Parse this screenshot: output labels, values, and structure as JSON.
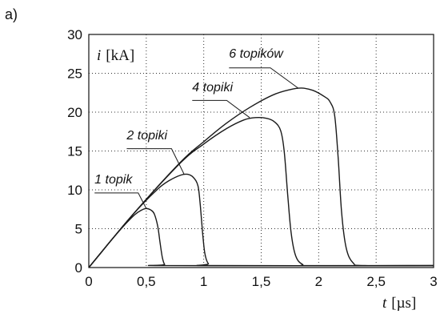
{
  "panel_label": "a)",
  "chart_data": {
    "type": "line",
    "xlabel_var": "t",
    "xlabel_unit": "[µs]",
    "ylabel_var": "i",
    "ylabel_unit": "[kA]",
    "xlim": [
      0,
      3
    ],
    "ylim": [
      0,
      30
    ],
    "xticks": [
      0,
      0.5,
      1,
      1.5,
      2,
      2.5,
      3
    ],
    "xtick_labels": [
      "0",
      "0,5",
      "1",
      "1,5",
      "2",
      "2,5",
      "3"
    ],
    "yticks": [
      0,
      5,
      10,
      15,
      20,
      25,
      30
    ],
    "ytick_labels": [
      "0",
      "5",
      "10",
      "15",
      "20",
      "25",
      "30"
    ],
    "grid": true,
    "series": [
      {
        "name": "1 topik",
        "points": [
          [
            0,
            0
          ],
          [
            0.1,
            1.8
          ],
          [
            0.2,
            3.6
          ],
          [
            0.3,
            5.3
          ],
          [
            0.4,
            6.8
          ],
          [
            0.46,
            7.4
          ],
          [
            0.5,
            7.6
          ],
          [
            0.54,
            7.4
          ],
          [
            0.57,
            6.9
          ],
          [
            0.6,
            5.3
          ],
          [
            0.62,
            3.2
          ],
          [
            0.64,
            1.3
          ],
          [
            0.66,
            0.4
          ],
          [
            0.7,
            0.25
          ],
          [
            3,
            0.25
          ]
        ]
      },
      {
        "name": "2 topiki",
        "points": [
          [
            0,
            0
          ],
          [
            0.2,
            3.6
          ],
          [
            0.4,
            7.1
          ],
          [
            0.6,
            10.1
          ],
          [
            0.7,
            11.2
          ],
          [
            0.8,
            11.9
          ],
          [
            0.86,
            12.0
          ],
          [
            0.91,
            11.6
          ],
          [
            0.95,
            10.5
          ],
          [
            0.97,
            8.0
          ],
          [
            0.99,
            4.5
          ],
          [
            1.01,
            1.8
          ],
          [
            1.04,
            0.5
          ],
          [
            1.1,
            0.25
          ],
          [
            3,
            0.25
          ]
        ]
      },
      {
        "name": "4 topiki",
        "points": [
          [
            0,
            0
          ],
          [
            0.4,
            7.1
          ],
          [
            0.8,
            13.5
          ],
          [
            1.0,
            15.9
          ],
          [
            1.2,
            17.9
          ],
          [
            1.35,
            19.0
          ],
          [
            1.45,
            19.3
          ],
          [
            1.55,
            19.2
          ],
          [
            1.62,
            18.7
          ],
          [
            1.67,
            17.6
          ],
          [
            1.7,
            15.0
          ],
          [
            1.73,
            9.5
          ],
          [
            1.76,
            4.5
          ],
          [
            1.8,
            1.5
          ],
          [
            1.86,
            0.4
          ],
          [
            1.95,
            0.25
          ],
          [
            3,
            0.25
          ]
        ]
      },
      {
        "name": "6 topików",
        "points": [
          [
            0,
            0
          ],
          [
            0.4,
            7.1
          ],
          [
            0.8,
            13.6
          ],
          [
            1.0,
            16.2
          ],
          [
            1.2,
            18.6
          ],
          [
            1.4,
            20.6
          ],
          [
            1.6,
            22.2
          ],
          [
            1.75,
            22.9
          ],
          [
            1.85,
            23.1
          ],
          [
            1.95,
            22.8
          ],
          [
            2.05,
            22.0
          ],
          [
            2.1,
            21.3
          ],
          [
            2.14,
            19.5
          ],
          [
            2.17,
            14.0
          ],
          [
            2.2,
            7.0
          ],
          [
            2.24,
            2.5
          ],
          [
            2.3,
            0.6
          ],
          [
            2.4,
            0.25
          ],
          [
            3,
            0.25
          ]
        ]
      }
    ]
  }
}
